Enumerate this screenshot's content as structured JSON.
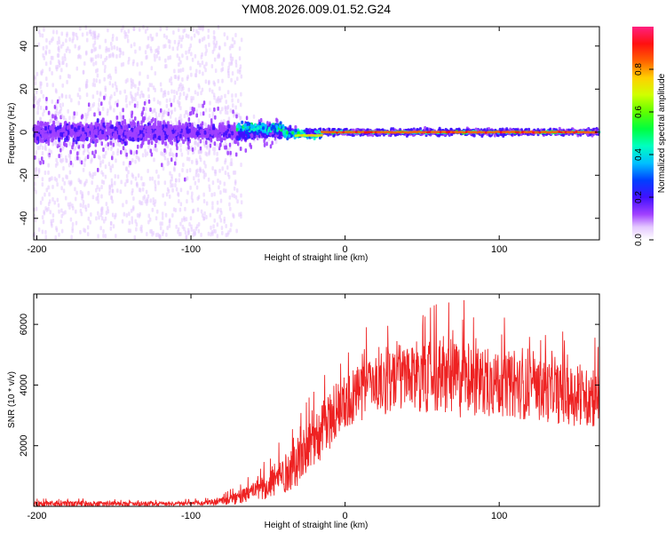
{
  "figure": {
    "title": "YM08.2026.009.01.52.G24"
  },
  "chart_data": [
    {
      "type": "heatmap",
      "title": "YM08.2026.009.01.52.G24",
      "xlabel": "Height of straight line (km)",
      "ylabel": "Frequency (Hz)",
      "xlim": [
        -202,
        165
      ],
      "ylim": [
        -50,
        49
      ],
      "xticks": [
        -200,
        -100,
        0,
        100
      ],
      "yticks": [
        -40,
        -20,
        0,
        20,
        40
      ],
      "description_of_content": "Normalized spectral amplitude vs frequency and height; broad low-amplitude scatter for heights below about -70 km, narrowing band near 0 Hz, and a high-amplitude (~0.9) line at 0 Hz for heights above about -15 km.",
      "colorbar": {
        "label": "Normalized spectral amplitude",
        "range": [
          0,
          1
        ],
        "ticks": [
          0,
          0.2,
          0.4,
          0.6,
          0.8
        ]
      }
    },
    {
      "type": "line",
      "xlabel": "Height of straight line (km)",
      "ylabel": "SNR (10 * v/v)",
      "xlim": [
        -202,
        165
      ],
      "ylim": [
        0,
        7000
      ],
      "xticks": [
        -200,
        -100,
        0,
        100
      ],
      "yticks": [
        2000,
        4000,
        6000
      ],
      "series": [
        {
          "name": "SNR",
          "color": "#ee2222",
          "envelope": {
            "x": [
              -202,
              -150,
              -100,
              -85,
              -70,
              -60,
              -50,
              -40,
              -30,
              -20,
              -10,
              0,
              10,
              20,
              30,
              50,
              75,
              100,
              130,
              165
            ],
            "mean": [
              80,
              80,
              90,
              120,
              250,
              450,
              700,
              1000,
              1500,
              2200,
              2800,
              3400,
              3800,
              4000,
              4100,
              4200,
              4150,
              4000,
              3800,
              3500
            ],
            "peak": [
              300,
              250,
              250,
              350,
              700,
              1100,
              1700,
              2400,
              3300,
              4200,
              4900,
              5400,
              6100,
              6300,
              6400,
              6600,
              7000,
              6300,
              6100,
              5600
            ]
          }
        }
      ]
    }
  ]
}
